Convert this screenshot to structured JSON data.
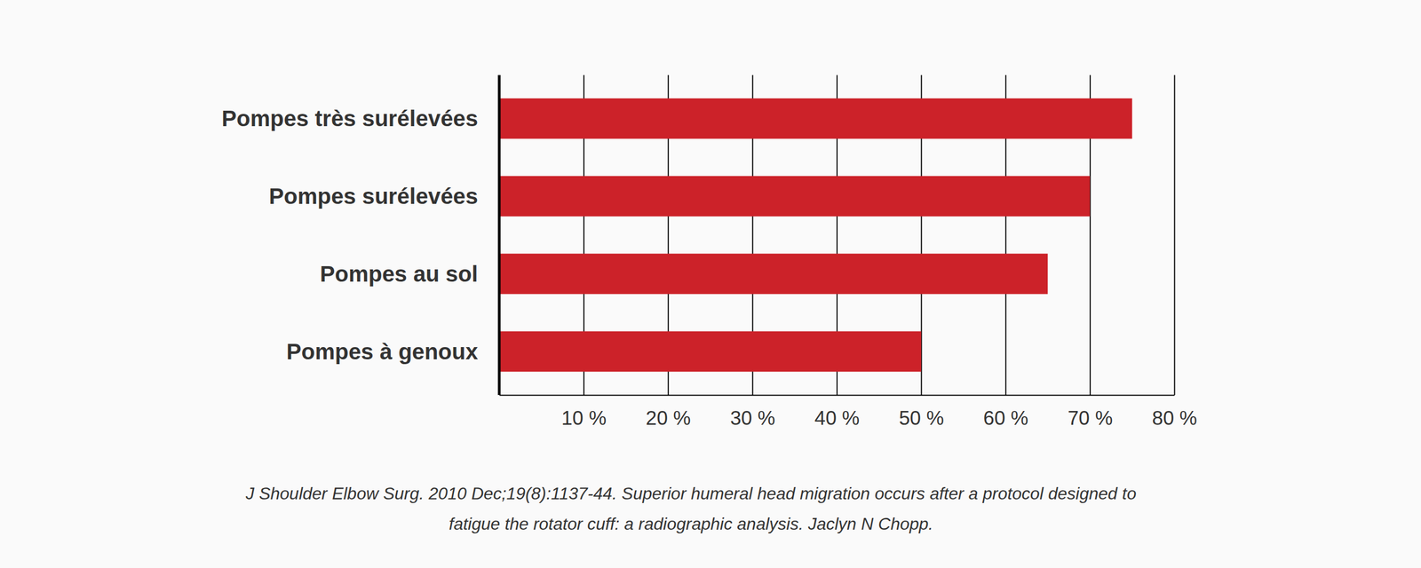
{
  "chart_data": {
    "type": "bar",
    "orientation": "horizontal",
    "categories": [
      "Pompes très surélevées",
      "Pompes surélevées",
      "Pompes au sol",
      "Pompes à genoux"
    ],
    "values": [
      75,
      70,
      65,
      50
    ],
    "color": "#cc2229",
    "xlim": [
      0,
      80
    ],
    "xticks": [
      {
        "value": 10,
        "label": "10 %"
      },
      {
        "value": 20,
        "label": "20 %"
      },
      {
        "value": 30,
        "label": "30 %"
      },
      {
        "value": 40,
        "label": "40 %"
      },
      {
        "value": 50,
        "label": "50 %"
      },
      {
        "value": 60,
        "label": "60 %"
      },
      {
        "value": 70,
        "label": "70 %"
      },
      {
        "value": 80,
        "label": "80 %"
      }
    ],
    "grid": true,
    "annotations": [
      "J Shoulder Elbow Surg. 2010 Dec;19(8):1137-44. Superior humeral head migration occurs after a protocol designed to",
      "fatigue the rotator cuff: a radiographic analysis. Jaclyn N Chopp."
    ]
  }
}
